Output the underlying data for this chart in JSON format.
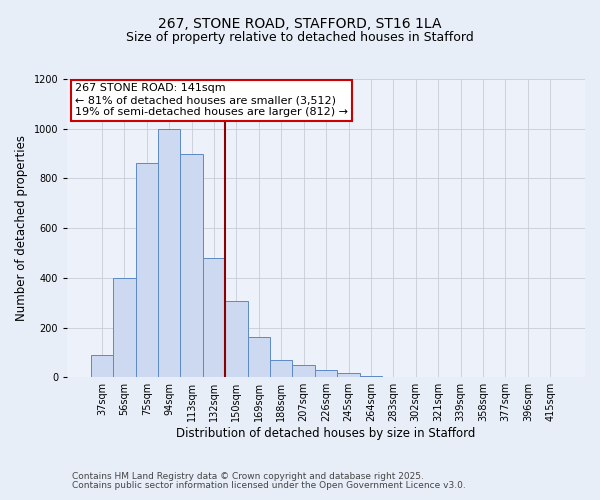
{
  "title": "267, STONE ROAD, STAFFORD, ST16 1LA",
  "subtitle": "Size of property relative to detached houses in Stafford",
  "xlabel": "Distribution of detached houses by size in Stafford",
  "ylabel": "Number of detached properties",
  "bar_labels": [
    "37sqm",
    "56sqm",
    "75sqm",
    "94sqm",
    "113sqm",
    "132sqm",
    "150sqm",
    "169sqm",
    "188sqm",
    "207sqm",
    "226sqm",
    "245sqm",
    "264sqm",
    "283sqm",
    "302sqm",
    "321sqm",
    "339sqm",
    "358sqm",
    "377sqm",
    "396sqm",
    "415sqm"
  ],
  "bar_values": [
    90,
    400,
    860,
    1000,
    900,
    480,
    305,
    160,
    70,
    50,
    30,
    15,
    5,
    2,
    1,
    1,
    0,
    0,
    0,
    0,
    0
  ],
  "bar_color": "#ccd9f0",
  "bar_edge_color": "#5b8ac8",
  "vline_x": 5.5,
  "vline_color": "#8b0000",
  "annotation_title": "267 STONE ROAD: 141sqm",
  "annotation_line1": "← 81% of detached houses are smaller (3,512)",
  "annotation_line2": "19% of semi-detached houses are larger (812) →",
  "annotation_box_color": "#ffffff",
  "annotation_box_edge": "#cc0000",
  "ylim": [
    0,
    1200
  ],
  "yticks": [
    0,
    200,
    400,
    600,
    800,
    1000,
    1200
  ],
  "footer1": "Contains HM Land Registry data © Crown copyright and database right 2025.",
  "footer2": "Contains public sector information licensed under the Open Government Licence v3.0.",
  "bg_color": "#e8eef8",
  "plot_bg_color": "#edf1fa",
  "title_fontsize": 10,
  "subtitle_fontsize": 9,
  "axis_label_fontsize": 8.5,
  "tick_fontsize": 7,
  "footer_fontsize": 6.5,
  "annotation_fontsize": 8
}
